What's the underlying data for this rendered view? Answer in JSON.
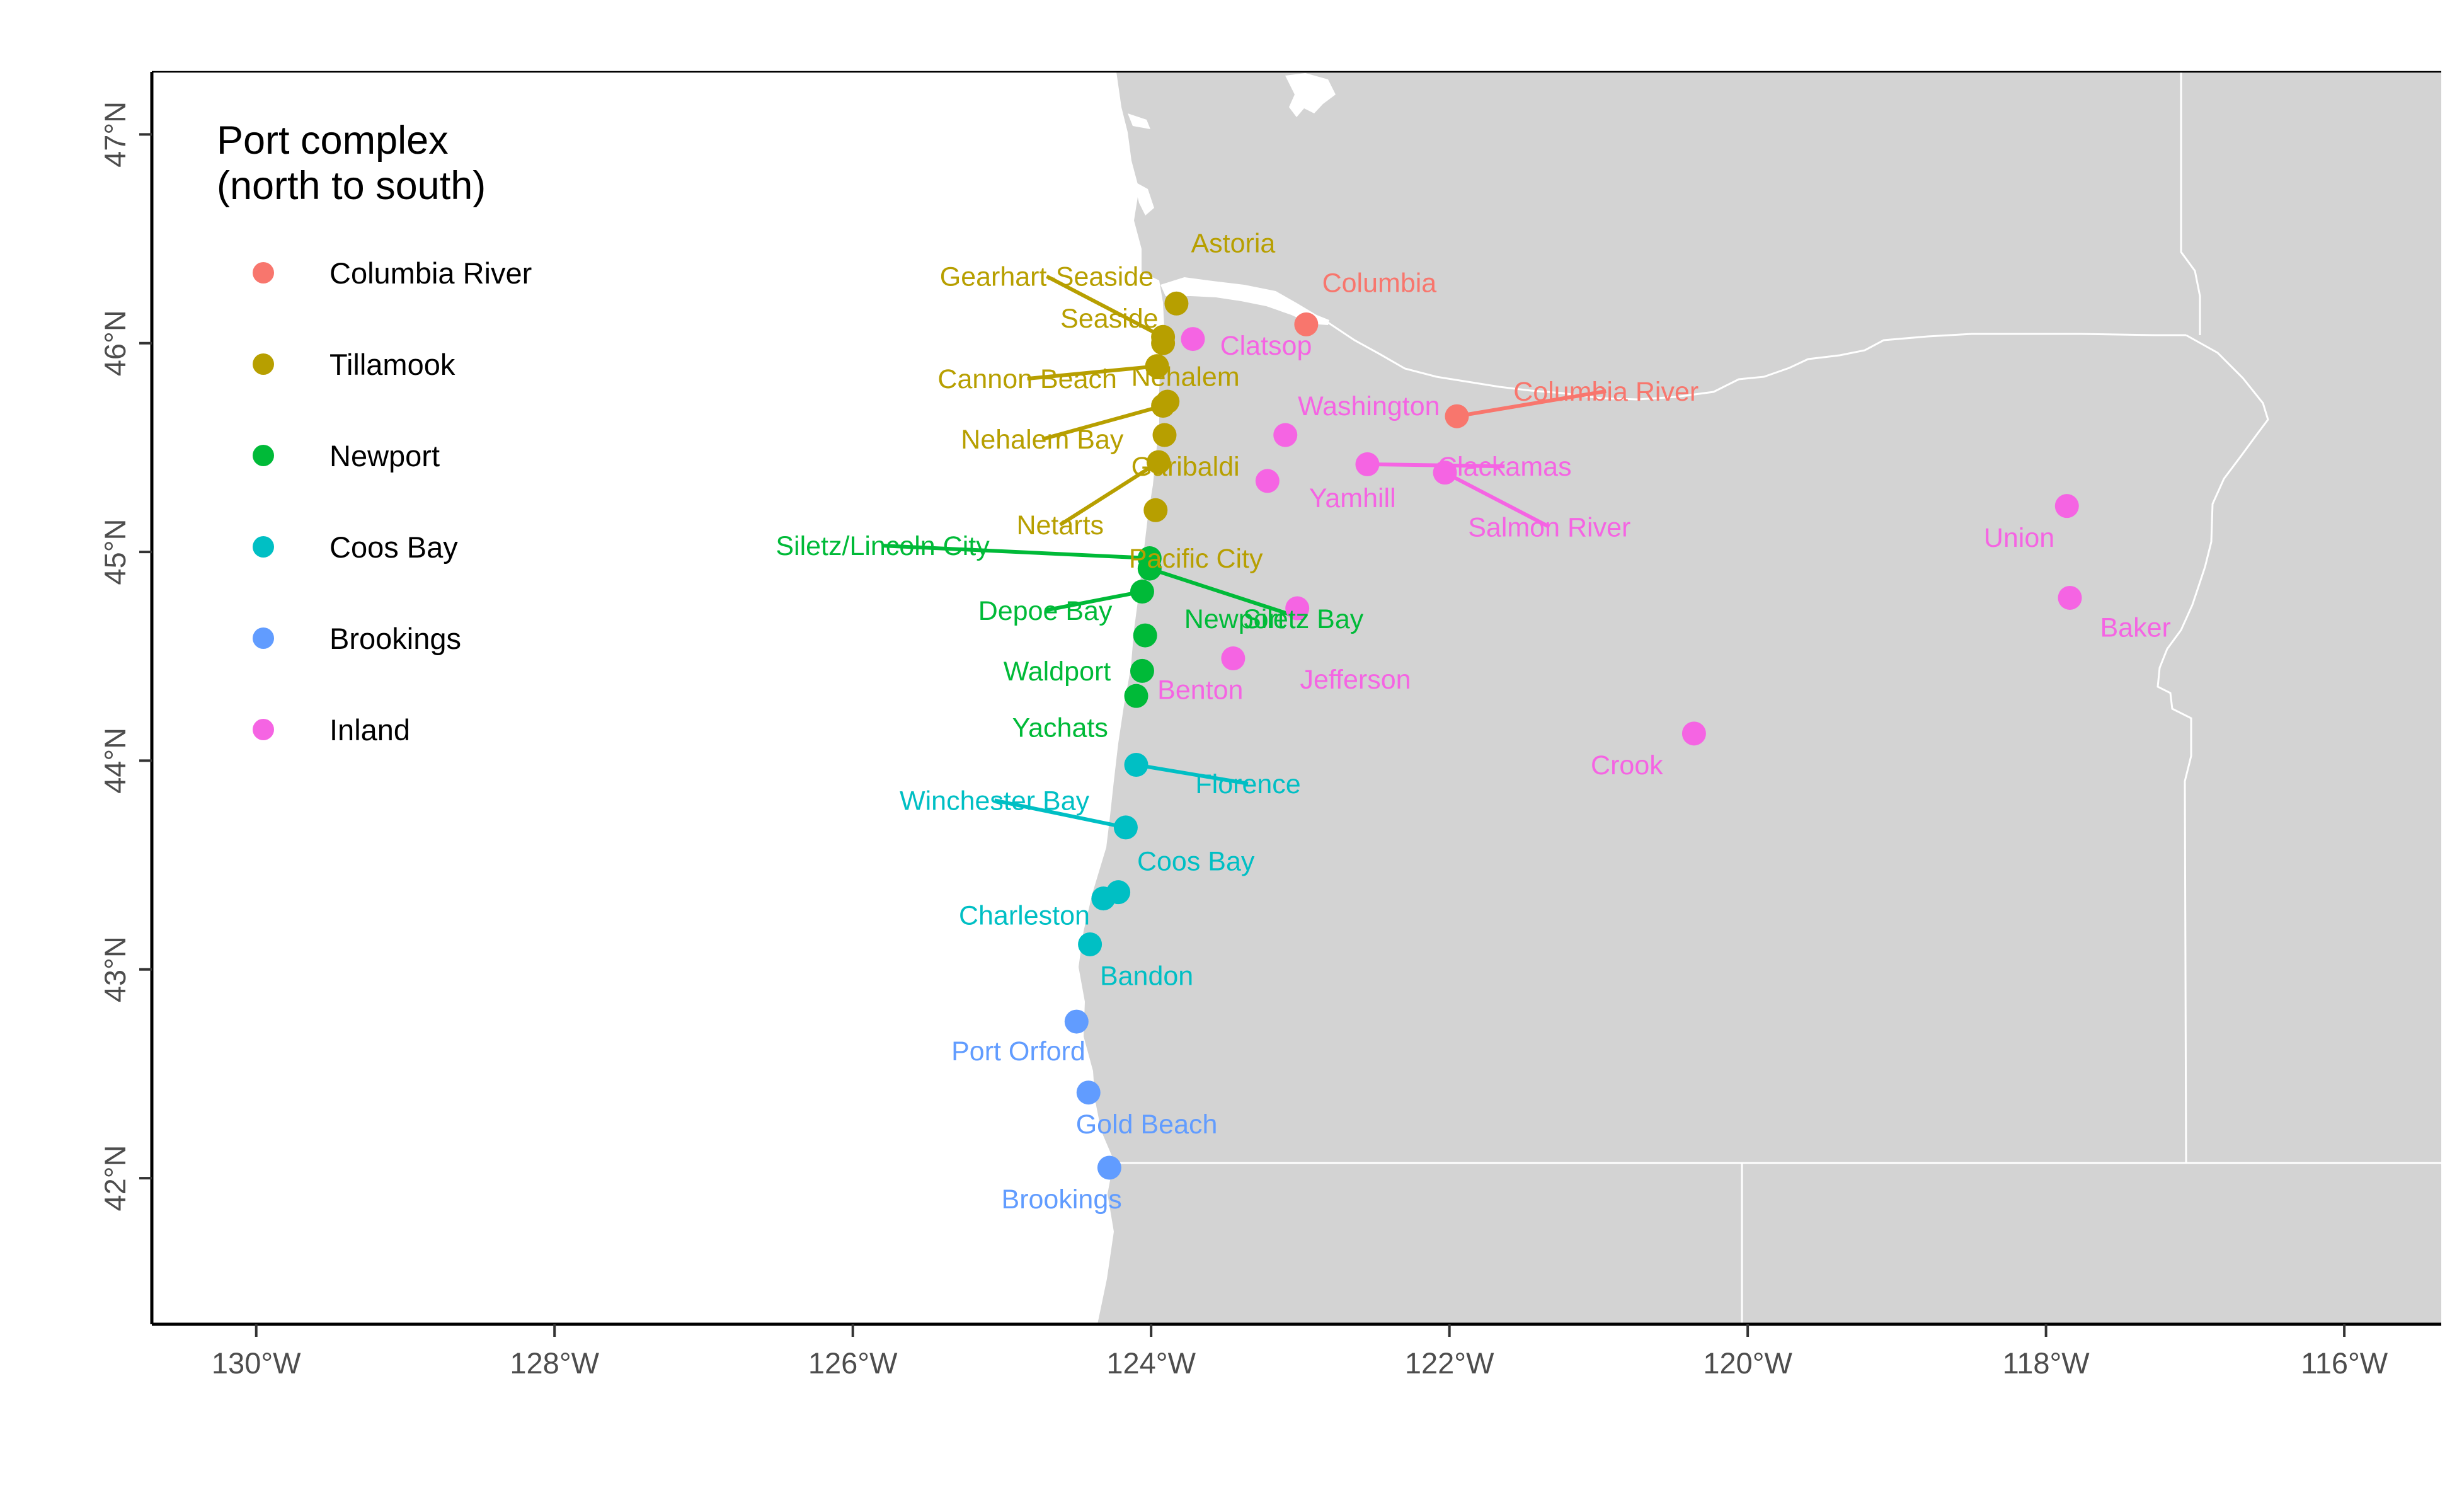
{
  "legend": {
    "title_line1": "Port complex",
    "title_line2": "(north to south)",
    "items": [
      {
        "label": "Columbia River",
        "color": "#F8766D"
      },
      {
        "label": "Tillamook",
        "color": "#B79F00"
      },
      {
        "label": "Newport",
        "color": "#00BA38"
      },
      {
        "label": "Coos Bay",
        "color": "#00BFC4"
      },
      {
        "label": "Brookings",
        "color": "#619CFF"
      },
      {
        "label": "Inland",
        "color": "#F564E3"
      }
    ]
  },
  "axes": {
    "x_ticks": [
      {
        "lon": -130,
        "label": "130°W"
      },
      {
        "lon": -128,
        "label": "128°W"
      },
      {
        "lon": -126,
        "label": "126°W"
      },
      {
        "lon": -124,
        "label": "124°W"
      },
      {
        "lon": -122,
        "label": "122°W"
      },
      {
        "lon": -120,
        "label": "120°W"
      },
      {
        "lon": -118,
        "label": "118°W"
      },
      {
        "lon": -116,
        "label": "116°W"
      }
    ],
    "y_ticks": [
      {
        "lat": 42,
        "label": "42°N"
      },
      {
        "lat": 43,
        "label": "43°N"
      },
      {
        "lat": 44,
        "label": "44°N"
      },
      {
        "lat": 45,
        "label": "45°N"
      },
      {
        "lat": 46,
        "label": "46°N"
      },
      {
        "lat": 47,
        "label": "47°N"
      }
    ],
    "xlim": [
      -130.7,
      -115.35
    ],
    "ylim": [
      41.3,
      47.3
    ]
  },
  "colors": {
    "land": "#D3D3D3",
    "water": "#FFFFFF",
    "border": "#FFFFFF"
  },
  "chart_data": {
    "type": "map",
    "ports": [
      {
        "name": "Astoria",
        "group": "Tillamook",
        "lon": -123.83,
        "lat": 46.19,
        "label_lon": -123.45,
        "label_lat": 46.48
      },
      {
        "name": "Gearhart-Seaside",
        "group": "Tillamook",
        "lon": -123.92,
        "lat": 46.03,
        "label_lon": -124.7,
        "label_lat": 46.32
      },
      {
        "name": "Seaside",
        "group": "Tillamook",
        "lon": -123.92,
        "lat": 46.0,
        "label_lon": -124.28,
        "label_lat": 46.12
      },
      {
        "name": "Cannon Beach",
        "group": "Tillamook",
        "lon": -123.96,
        "lat": 45.89,
        "label_lon": -124.83,
        "label_lat": 45.83
      },
      {
        "name": "Nehalem",
        "group": "Tillamook",
        "lon": -123.89,
        "lat": 45.72,
        "label_lon": -123.77,
        "label_lat": 45.84
      },
      {
        "name": "Nehalem Bay",
        "group": "Tillamook",
        "lon": -123.92,
        "lat": 45.7,
        "label_lon": -124.73,
        "label_lat": 45.54
      },
      {
        "name": "Garibaldi",
        "group": "Tillamook",
        "lon": -123.91,
        "lat": 45.56,
        "label_lon": -123.77,
        "label_lat": 45.41
      },
      {
        "name": "Netarts",
        "group": "Tillamook",
        "lon": -123.95,
        "lat": 45.43,
        "label_lon": -124.61,
        "label_lat": 45.13
      },
      {
        "name": "Pacific City",
        "group": "Tillamook",
        "lon": -123.97,
        "lat": 45.2,
        "label_lon": -123.7,
        "label_lat": 44.97
      },
      {
        "name": "Siletz/Lincoln City",
        "group": "Newport",
        "lon": -124.01,
        "lat": 44.97,
        "label_lon": -125.8,
        "label_lat": 45.03
      },
      {
        "name": "Siletz Bay",
        "group": "Newport",
        "lon": -124.01,
        "lat": 44.92,
        "label_lon": -122.98,
        "label_lat": 44.68
      },
      {
        "name": "Depoe Bay",
        "group": "Newport",
        "lon": -124.06,
        "lat": 44.81,
        "label_lon": -124.71,
        "label_lat": 44.72
      },
      {
        "name": "Newport",
        "group": "Newport",
        "lon": -124.04,
        "lat": 44.6,
        "label_lon": -123.44,
        "label_lat": 44.68
      },
      {
        "name": "Waldport",
        "group": "Newport",
        "lon": -124.06,
        "lat": 44.43,
        "label_lon": -124.63,
        "label_lat": 44.43
      },
      {
        "name": "Yachats",
        "group": "Newport",
        "lon": -124.1,
        "lat": 44.31,
        "label_lon": -124.61,
        "label_lat": 44.16
      },
      {
        "name": "Florence",
        "group": "Coos Bay",
        "lon": -124.1,
        "lat": 43.98,
        "label_lon": -123.35,
        "label_lat": 43.89
      },
      {
        "name": "Winchester Bay",
        "group": "Coos Bay",
        "lon": -124.17,
        "lat": 43.68,
        "label_lon": -125.05,
        "label_lat": 43.81
      },
      {
        "name": "Coos Bay",
        "group": "Coos Bay",
        "lon": -124.22,
        "lat": 43.37,
        "label_lon": -123.7,
        "label_lat": 43.52
      },
      {
        "name": "Charleston",
        "group": "Coos Bay",
        "lon": -124.32,
        "lat": 43.34,
        "label_lon": -124.85,
        "label_lat": 43.26
      },
      {
        "name": "Bandon",
        "group": "Coos Bay",
        "lon": -124.41,
        "lat": 43.12,
        "label_lon": -124.03,
        "label_lat": 42.97
      },
      {
        "name": "Port Orford",
        "group": "Brookings",
        "lon": -124.5,
        "lat": 42.75,
        "label_lon": -124.89,
        "label_lat": 42.61
      },
      {
        "name": "Gold Beach",
        "group": "Brookings",
        "lon": -124.42,
        "lat": 42.41,
        "label_lon": -124.03,
        "label_lat": 42.26
      },
      {
        "name": "Brookings",
        "group": "Brookings",
        "lon": -124.28,
        "lat": 42.05,
        "label_lon": -124.6,
        "label_lat": 41.9
      },
      {
        "name": "Columbia",
        "group": "Columbia River",
        "lon": -122.96,
        "lat": 46.09,
        "label_lon": -122.47,
        "label_lat": 46.29
      },
      {
        "name": "Columbia River",
        "group": "Columbia River",
        "lon": -121.95,
        "lat": 45.65,
        "label_lon": -120.95,
        "label_lat": 45.77
      },
      {
        "name": "Clatsop",
        "group": "Inland",
        "lon": -123.72,
        "lat": 46.02,
        "label_lon": -123.23,
        "label_lat": 45.99
      },
      {
        "name": "Washington",
        "group": "Inland",
        "lon": -123.1,
        "lat": 45.56,
        "label_lon": -122.54,
        "label_lat": 45.7
      },
      {
        "name": "Clackamas",
        "group": "Inland",
        "lon": -122.55,
        "lat": 45.42,
        "label_lon": -121.63,
        "label_lat": 45.41
      },
      {
        "name": "Yamhill",
        "group": "Inland",
        "lon": -123.22,
        "lat": 45.34,
        "label_lon": -122.65,
        "label_lat": 45.26
      },
      {
        "name": "Salmon River",
        "group": "Inland",
        "lon": -122.03,
        "lat": 45.38,
        "label_lon": -121.33,
        "label_lat": 45.12
      },
      {
        "name": "Jefferson",
        "group": "Inland",
        "lon": -123.02,
        "lat": 44.73,
        "label_lon": -122.63,
        "label_lat": 44.39
      },
      {
        "name": "Benton",
        "group": "Inland",
        "lon": -123.45,
        "lat": 44.49,
        "label_lon": -123.67,
        "label_lat": 44.34
      },
      {
        "name": "Union",
        "group": "Inland",
        "lon": -117.86,
        "lat": 45.22,
        "label_lon": -118.18,
        "label_lat": 45.07
      },
      {
        "name": "Baker",
        "group": "Inland",
        "lon": -117.84,
        "lat": 44.78,
        "label_lon": -117.4,
        "label_lat": 44.64
      },
      {
        "name": "Crook",
        "group": "Inland",
        "lon": -120.36,
        "lat": 44.13,
        "label_lon": -120.81,
        "label_lat": 43.98
      }
    ]
  }
}
